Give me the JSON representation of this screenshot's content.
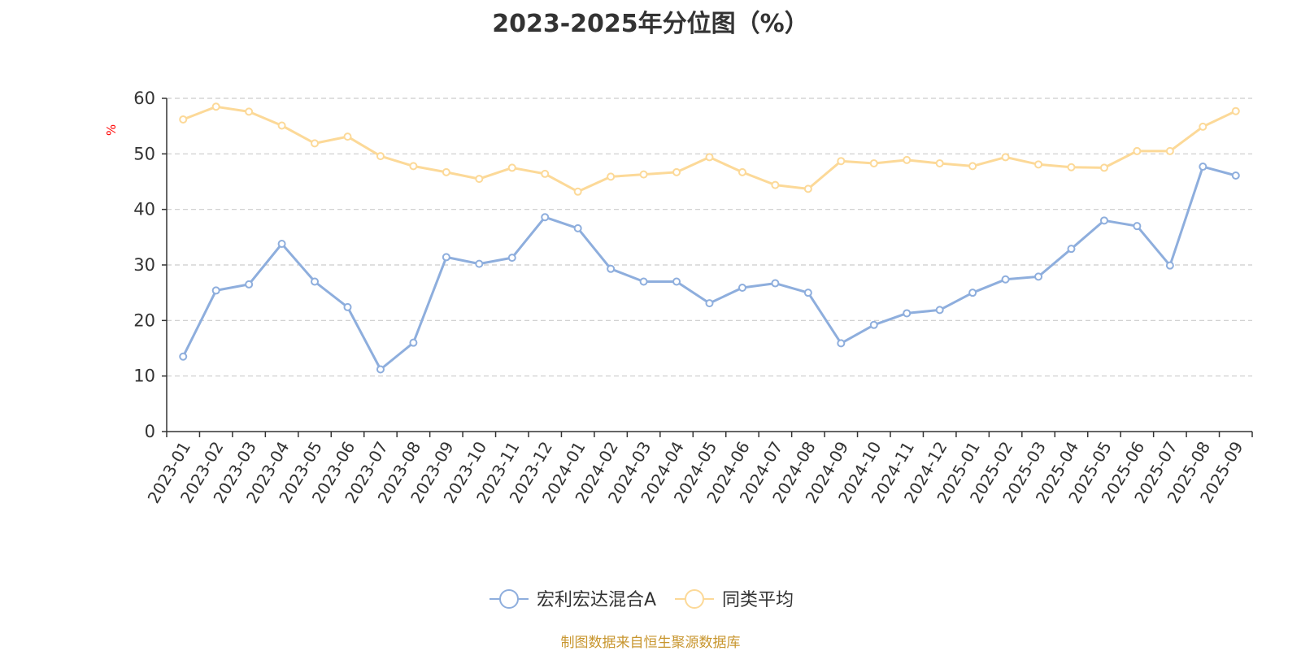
{
  "title": "2023-2025年分位图（%）",
  "source_note": "制图数据来自恒生聚源数据库",
  "chart_data": {
    "type": "line",
    "title": "2023-2025年分位图（%）",
    "ylabel": "%",
    "ylim": [
      0,
      60
    ],
    "yticks": [
      0,
      10,
      20,
      30,
      40,
      50,
      60
    ],
    "grid": true,
    "legend_position": "bottom-center",
    "categories": [
      "2023-01",
      "2023-02",
      "2023-03",
      "2023-04",
      "2023-05",
      "2023-06",
      "2023-07",
      "2023-08",
      "2023-09",
      "2023-10",
      "2023-11",
      "2023-12",
      "2024-01",
      "2024-02",
      "2024-03",
      "2024-04",
      "2024-05",
      "2024-06",
      "2024-07",
      "2024-08",
      "2024-09",
      "2024-10",
      "2024-11",
      "2024-12",
      "2025-01",
      "2025-02",
      "2025-03",
      "2025-04",
      "2025-05",
      "2025-06",
      "2025-07",
      "2025-08",
      "2025-09"
    ],
    "series": [
      {
        "name": "宏利宏达混合A",
        "color": "#8eaedd",
        "values": [
          13.5,
          25.4,
          26.5,
          33.8,
          27.0,
          22.4,
          11.2,
          16.0,
          31.4,
          30.2,
          31.3,
          38.6,
          36.6,
          29.3,
          27.0,
          27.0,
          23.1,
          25.9,
          26.7,
          25.0,
          15.9,
          19.2,
          21.3,
          21.9,
          25.0,
          27.4,
          27.9,
          32.9,
          38.0,
          37.0,
          29.9,
          47.7,
          46.1
        ]
      },
      {
        "name": "同类平均",
        "color": "#fcd998",
        "values": [
          56.2,
          58.5,
          57.6,
          55.1,
          51.9,
          53.1,
          49.6,
          47.8,
          46.7,
          45.5,
          47.5,
          46.4,
          43.2,
          45.9,
          46.3,
          46.7,
          49.4,
          46.7,
          44.4,
          43.7,
          48.7,
          48.3,
          48.9,
          48.3,
          47.8,
          49.4,
          48.1,
          47.6,
          47.5,
          50.5,
          50.5,
          54.9,
          57.7
        ]
      }
    ]
  }
}
